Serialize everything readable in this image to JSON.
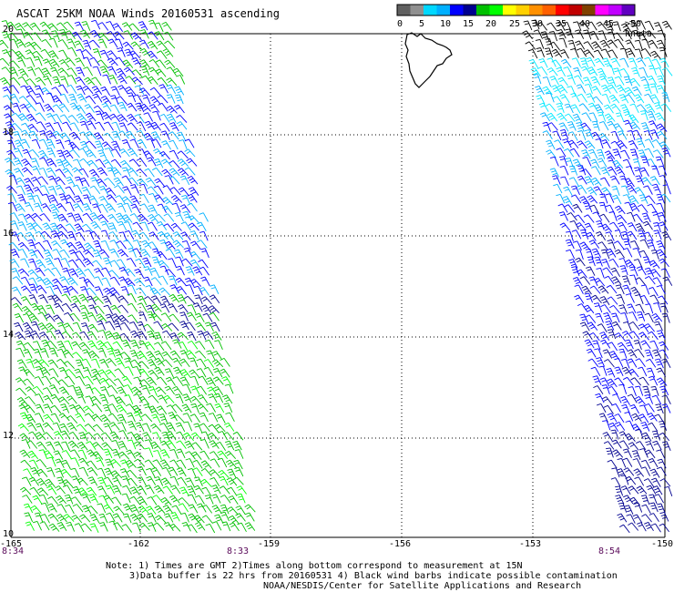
{
  "title": "ASCAT 25KM NOAA Winds 20160531 ascending",
  "lat_labels": [
    "20",
    "18",
    "16",
    "14",
    "12",
    "10"
  ],
  "lon_labels": [
    "-165",
    "-162",
    "-159",
    "-156",
    "-153",
    "-150"
  ],
  "time_labels": [
    "8:34",
    "8:33",
    "8:54"
  ],
  "legend": {
    "labels": [
      "0",
      "5",
      "10",
      "15",
      "20",
      "25",
      "30",
      "35",
      "40",
      "45",
      ">50 knots"
    ],
    "colors": [
      "#606060",
      "#909090",
      "#00d8ff",
      "#00b0ff",
      "#0000ff",
      "#000090",
      "#00c000",
      "#00ff00",
      "#ffff00",
      "#ffd000",
      "#ff9000",
      "#ff6000",
      "#ff0000",
      "#c00000",
      "#804000",
      "#ff00ff",
      "#c000ff",
      "#6000c0"
    ]
  },
  "notes": {
    "line1": "Note: 1) Times are GMT 2)Times along bottom correspond to measurement at 15N",
    "line2": "3)Data buffer is 22 hrs from 20160531 4) Black wind barbs indicate possible contamination",
    "line3": "NOAA/NESDIS/Center for Satellite Applications and Research"
  },
  "colors": {
    "green": "#00c000",
    "bright_green": "#00ff00",
    "blue": "#0000ff",
    "dark_blue": "#000090",
    "light_blue": "#00b0ff",
    "cyan": "#00e8ff",
    "black": "#000000"
  }
}
